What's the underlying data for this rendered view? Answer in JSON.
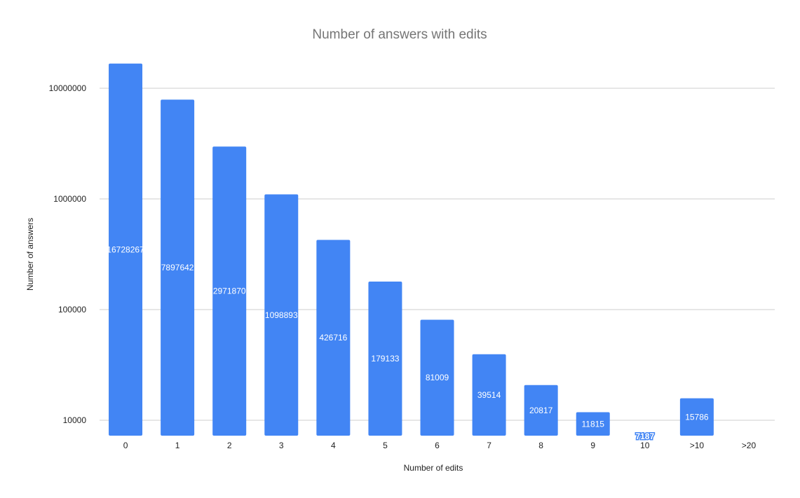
{
  "chart_data": {
    "type": "bar",
    "title": "Number of answers with edits",
    "xlabel": "Number of edits",
    "ylabel": "Number of answers",
    "y_scale": "log",
    "ylim": [
      7200,
      20000000
    ],
    "y_ticks": [
      10000,
      100000,
      1000000,
      10000000
    ],
    "y_tick_labels": [
      "10000",
      "100000",
      "1000000",
      "10000000"
    ],
    "grid": true,
    "color": "#4285f4",
    "categories": [
      "0",
      "1",
      "2",
      "3",
      "4",
      "5",
      "6",
      "7",
      "8",
      "9",
      "10",
      ">10",
      ">20"
    ],
    "values": [
      16728267,
      7897642,
      2971870,
      1098893,
      426716,
      179133,
      81009,
      39514,
      20817,
      11815,
      7187,
      15786,
      null
    ],
    "data_labels": [
      "16728267",
      "7897642",
      "2971870",
      "1098893",
      "426716",
      "179133",
      "81009",
      "39514",
      "20817",
      "11815",
      "7187",
      "15786",
      ""
    ]
  }
}
